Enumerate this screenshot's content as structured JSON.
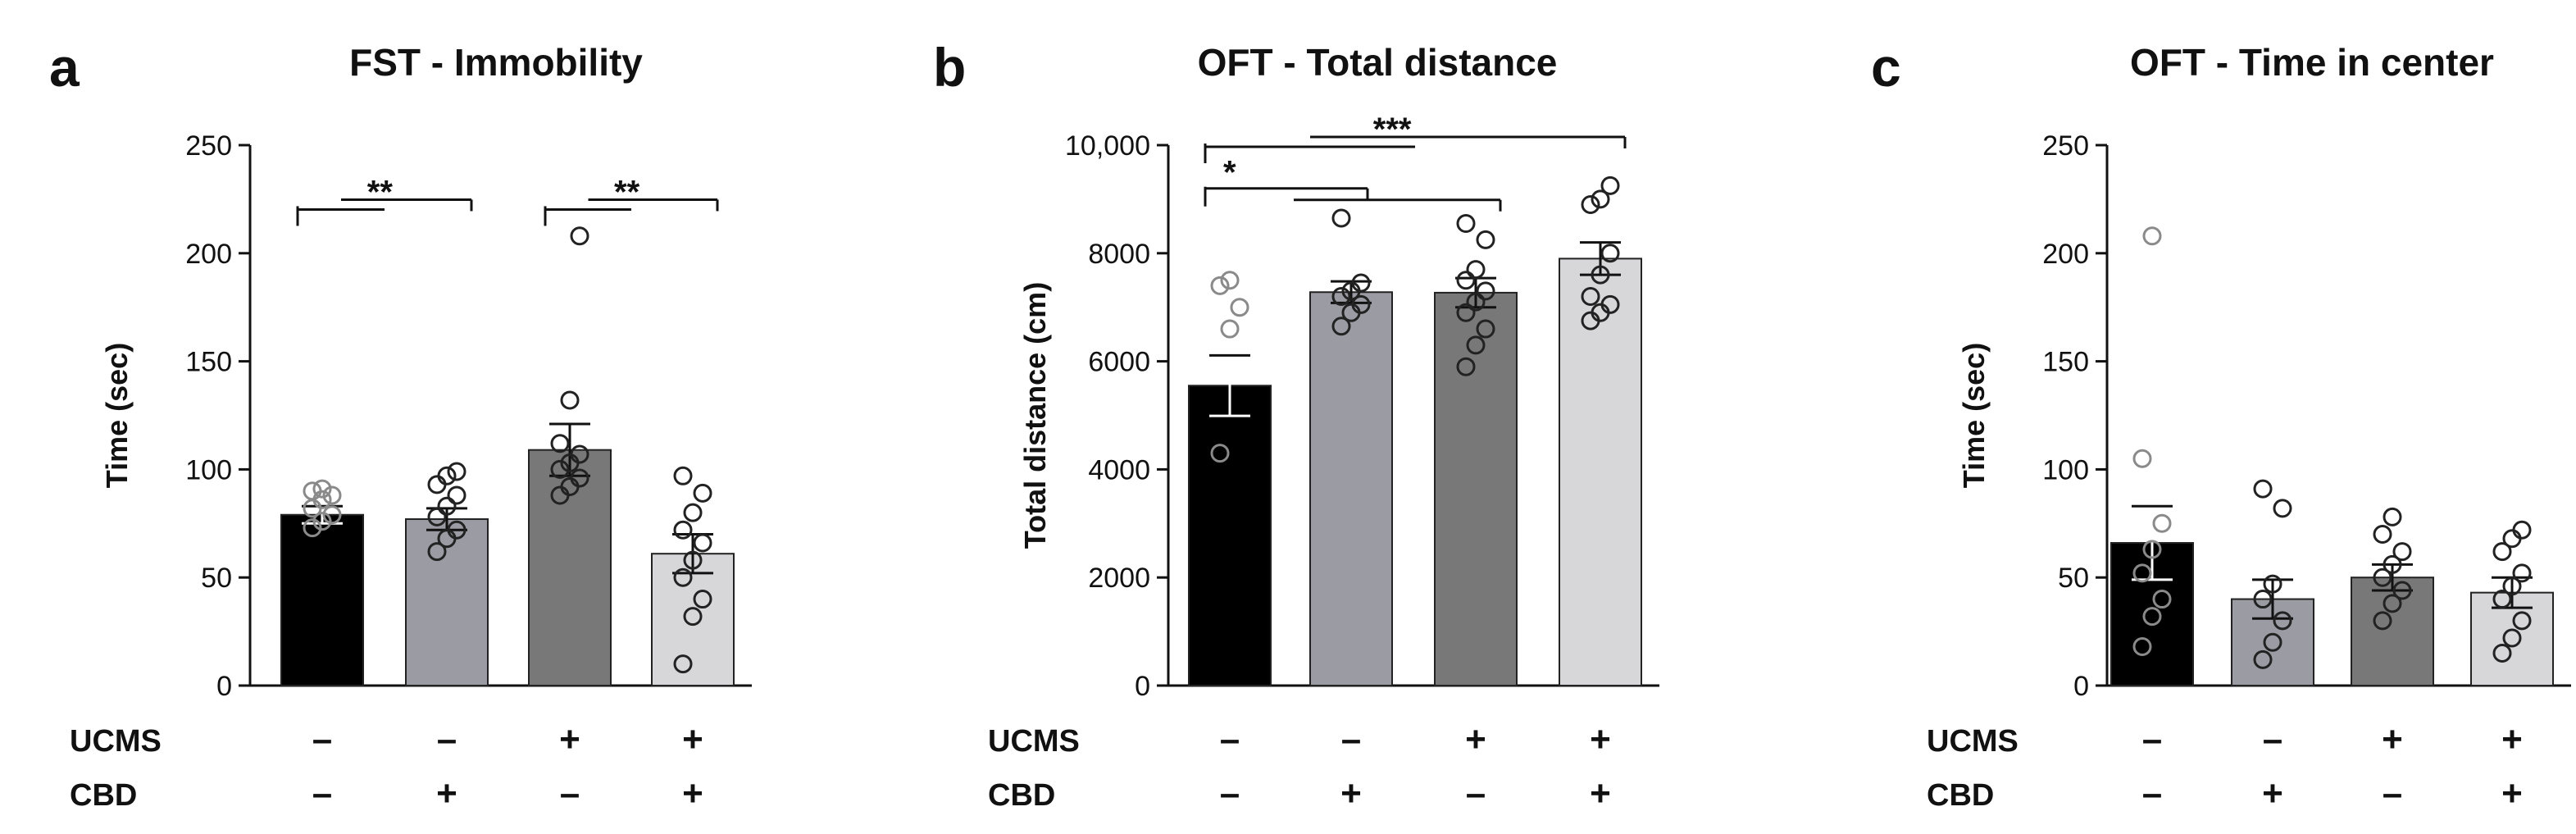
{
  "chart_data": [
    {
      "type": "bar",
      "panel": "a",
      "title": "FST - Immobility",
      "ylabel": "Time (sec)",
      "ylim": [
        0,
        250
      ],
      "yticks": [
        "0",
        "50",
        "100",
        "150",
        "200",
        "250"
      ],
      "groups": [
        {
          "UCMS": "–",
          "CBD": "–"
        },
        {
          "UCMS": "–",
          "CBD": "+"
        },
        {
          "UCMS": "+",
          "CBD": "–"
        },
        {
          "UCMS": "+",
          "CBD": "+"
        }
      ],
      "values": [
        79,
        77,
        109,
        61
      ],
      "sem": [
        4,
        5,
        12,
        9
      ],
      "points": [
        [
          73,
          76,
          79,
          82,
          86,
          88,
          90,
          91
        ],
        [
          62,
          68,
          72,
          78,
          83,
          88,
          93,
          97,
          99
        ],
        [
          88,
          92,
          96,
          100,
          103,
          107,
          112,
          132,
          208
        ],
        [
          10,
          32,
          40,
          50,
          58,
          66,
          72,
          80,
          89,
          97
        ]
      ],
      "bar_colors": [
        "#000000",
        "#9b9ba3",
        "#787878",
        "#d7d7d9"
      ],
      "significance": [
        {
          "label": "**",
          "from": 0,
          "to": [
            1
          ],
          "y": 221
        },
        {
          "label": "**",
          "from": 2,
          "to": [
            3
          ],
          "y": 221
        }
      ]
    },
    {
      "type": "bar",
      "panel": "b",
      "title": "OFT - Total distance",
      "ylabel": "Total distance  (cm)",
      "ylim": [
        0,
        10000
      ],
      "yticks": [
        "0",
        "2000",
        "4000",
        "6000",
        "8000",
        "10,000"
      ],
      "groups": [
        {
          "UCMS": "–",
          "CBD": "–"
        },
        {
          "UCMS": "–",
          "CBD": "+"
        },
        {
          "UCMS": "+",
          "CBD": "–"
        },
        {
          "UCMS": "+",
          "CBD": "+"
        }
      ],
      "values": [
        5550,
        7280,
        7270,
        7900
      ],
      "sem": [
        560,
        200,
        270,
        300
      ],
      "points": [
        [
          4300,
          6600,
          7000,
          7400,
          7500
        ],
        [
          6650,
          6900,
          7050,
          7200,
          7300,
          7450,
          8650
        ],
        [
          5900,
          6300,
          6600,
          6900,
          7100,
          7300,
          7500,
          7700,
          8250,
          8550
        ],
        [
          6750,
          6900,
          7050,
          7200,
          7600,
          8000,
          8900,
          9000,
          9250
        ]
      ],
      "bar_colors": [
        "#000000",
        "#9b9ba3",
        "#787878",
        "#d7d7d9"
      ],
      "significance": [
        {
          "label": "***",
          "from": 0,
          "to": [
            3
          ],
          "y": 10000
        },
        {
          "label": "*",
          "from": 0,
          "to": [
            1,
            2
          ],
          "y": 9200
        }
      ]
    },
    {
      "type": "bar",
      "panel": "c",
      "title": "OFT - Time in center",
      "ylabel": "Time (sec)",
      "ylim": [
        0,
        250
      ],
      "yticks": [
        "0",
        "50",
        "100",
        "150",
        "200",
        "250"
      ],
      "groups": [
        {
          "UCMS": "–",
          "CBD": "–"
        },
        {
          "UCMS": "–",
          "CBD": "+"
        },
        {
          "UCMS": "+",
          "CBD": "–"
        },
        {
          "UCMS": "+",
          "CBD": "+"
        }
      ],
      "values": [
        66,
        40,
        50,
        43
      ],
      "sem": [
        17,
        9,
        6,
        7
      ],
      "points": [
        [
          18,
          32,
          40,
          52,
          63,
          75,
          105,
          208
        ],
        [
          12,
          20,
          30,
          40,
          47,
          82,
          91
        ],
        [
          30,
          38,
          44,
          50,
          56,
          62,
          70,
          78
        ],
        [
          15,
          22,
          30,
          40,
          46,
          52,
          62,
          68,
          72
        ]
      ],
      "bar_colors": [
        "#000000",
        "#9b9ba3",
        "#787878",
        "#d7d7d9"
      ],
      "significance": []
    }
  ],
  "row_labels": {
    "ucms": "UCMS",
    "cbd": "CBD"
  }
}
